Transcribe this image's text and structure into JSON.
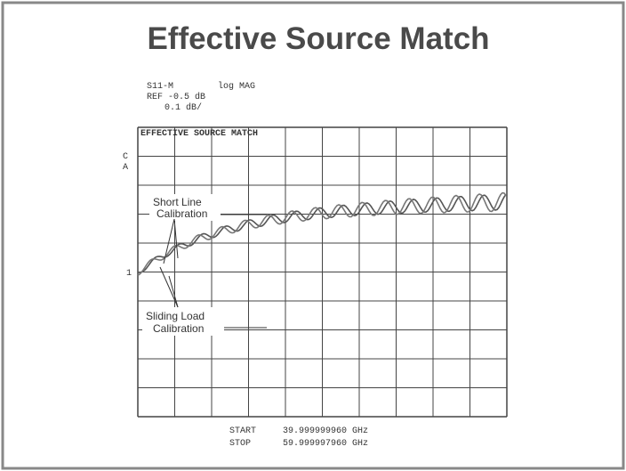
{
  "title": "Effective Source Match",
  "header": {
    "param": "S11-M",
    "format": "log MAG",
    "ref": "REF -0.5 dB",
    "scale": "0.1 dB/"
  },
  "plot": {
    "label": "EFFECTIVE SOURCE MATCH",
    "channel": [
      "C",
      "A"
    ],
    "marker": "1"
  },
  "annotations": {
    "short_line": [
      "Short Line",
      "Calibration"
    ],
    "sliding_load": [
      "Sliding Load",
      "Calibration"
    ]
  },
  "footer": {
    "start_label": "START",
    "start": "39.999999960 GHz",
    "stop_label": "STOP",
    "stop": "59.999997960 GHz"
  }
}
